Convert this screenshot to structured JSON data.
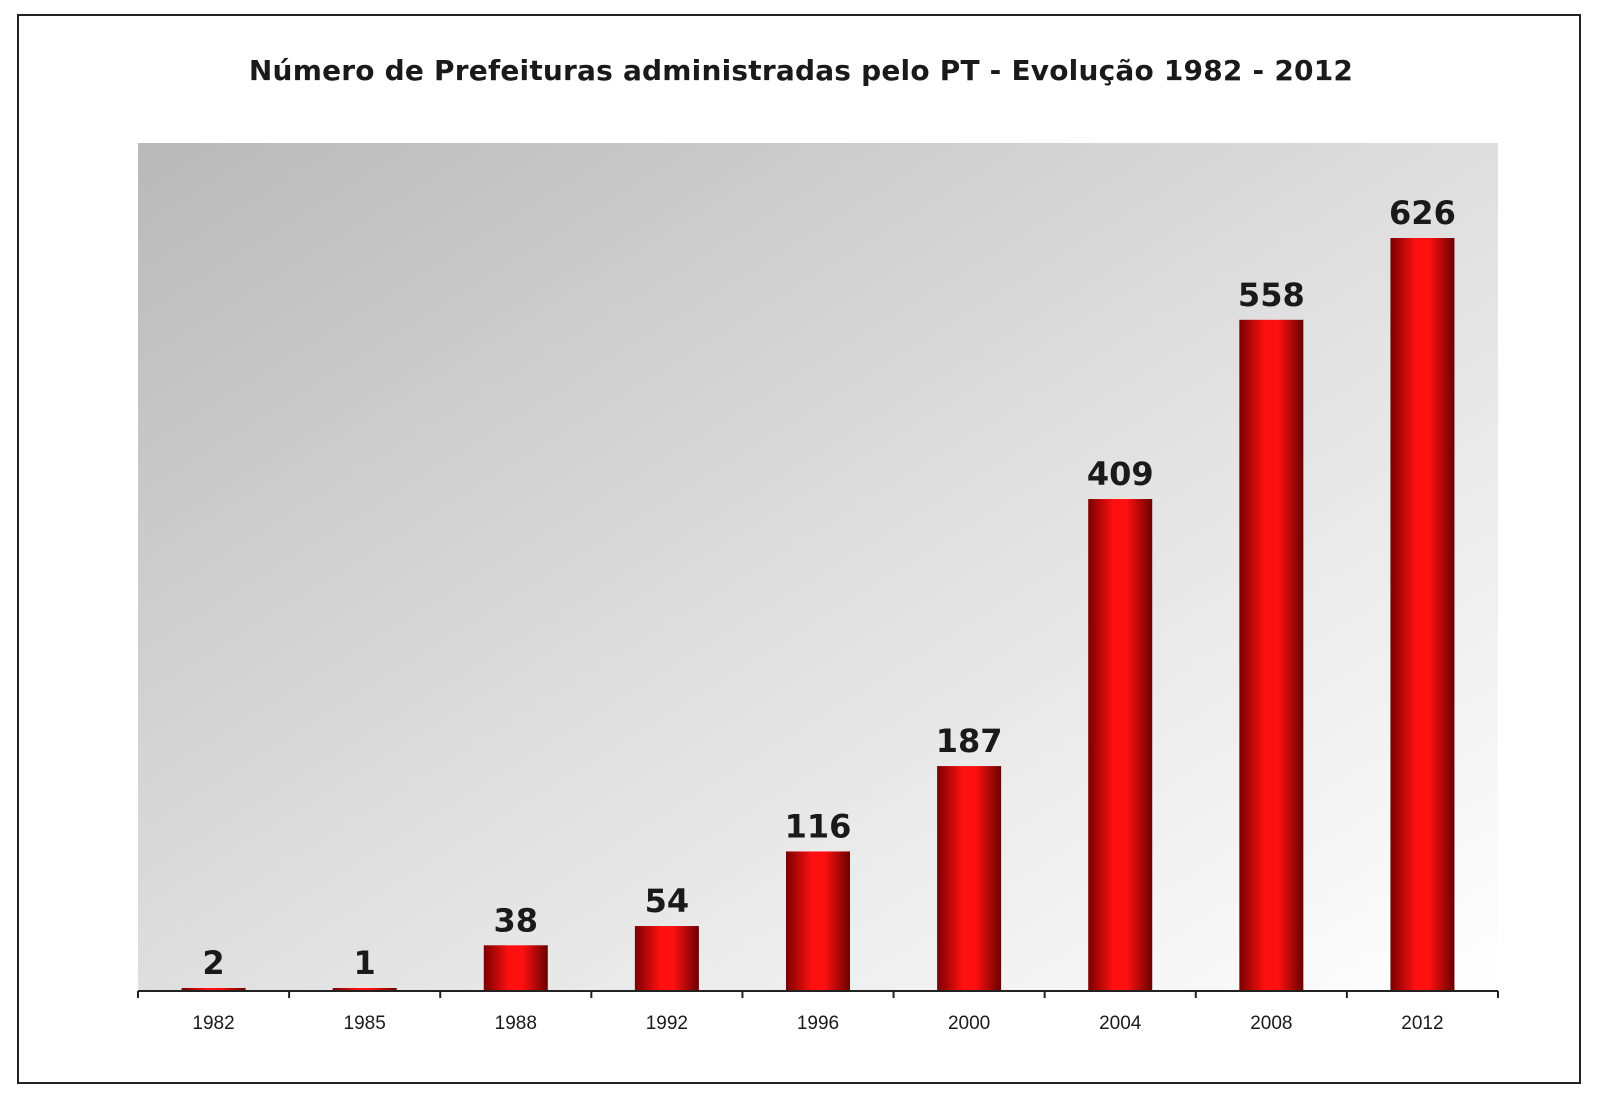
{
  "chart_data": {
    "type": "bar",
    "title": "Número de Prefeituras administradas pelo PT - Evolução 1982 - 2012",
    "xlabel": "",
    "ylabel": "",
    "categories": [
      "1982",
      "1985",
      "1988",
      "1992",
      "1996",
      "2000",
      "2004",
      "2008",
      "2012"
    ],
    "values": [
      2,
      1,
      38,
      54,
      116,
      187,
      409,
      558,
      626
    ],
    "ylim": [
      0,
      705
    ],
    "grid": false,
    "legend": "none",
    "data_labels": true,
    "colors": {
      "bar_light": "#ff1a1a",
      "bar_dark": "#6e0000",
      "plot_bg_dark": "#b8b8b8",
      "plot_bg_light": "#ffffff"
    }
  }
}
